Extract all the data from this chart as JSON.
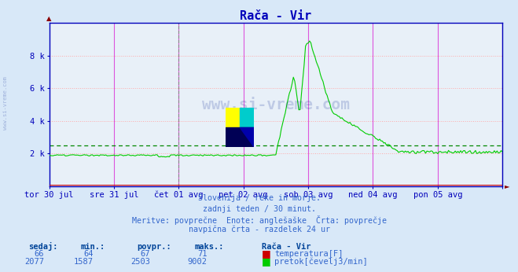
{
  "title": "Rača - Vir",
  "bg_color": "#d8e8f8",
  "plot_bg_color": "#e8f0f8",
  "fig_size": [
    6.59,
    3.46
  ],
  "dpi": 100,
  "ylim": [
    0,
    10000
  ],
  "ytick_vals": [
    2000,
    4000,
    6000,
    8000
  ],
  "ytick_labels": [
    "2 k",
    "4 k",
    "6 k",
    "8 k"
  ],
  "x_end": 336,
  "num_points": 337,
  "xlabel_ticks": [
    0,
    48,
    96,
    144,
    192,
    240,
    288,
    336
  ],
  "xlabel_labels": [
    "tor 30 jul",
    "sre 31 jul",
    "čet 01 avg",
    "pet 02 avg",
    "sob 03 avg",
    "ned 04 avg",
    "pon 05 avg",
    ""
  ],
  "flow_avg": 2503,
  "flow_color": "#00cc00",
  "temp_color": "#cc0000",
  "avg_line_color": "#008800",
  "grid_h_color": "#ffaaaa",
  "grid_v_solid_color": "#dd55dd",
  "grid_v_dash_color": "#888888",
  "axis_color": "#0000bb",
  "text_color": "#3366cc",
  "label_bold_color": "#004499",
  "watermark": "www.si-vreme.com",
  "watermark_color": "#1a3399",
  "subtitle_lines": [
    "Slovenija / reke in morje.",
    "zadnji teden / 30 minut.",
    "Meritve: povprečne  Enote: anglešaške  Črta: povprečje",
    "navpična črta - razdelek 24 ur"
  ],
  "legend_title": "Rača - Vir",
  "legend_items": [
    "temperatura[F]",
    "pretok[čevelj3/min]"
  ],
  "legend_colors": [
    "#cc0000",
    "#00cc00"
  ],
  "stats_headers": [
    "sedaj:",
    "min.:",
    "povpr.:",
    "maks.:"
  ],
  "stats_temp": [
    66,
    64,
    67,
    71
  ],
  "stats_flow": [
    2077,
    1587,
    2503,
    9002
  ],
  "logo_colors": [
    "#ffff00",
    "#00cccc",
    "#000055",
    "#0000aa"
  ],
  "spike_start": 168,
  "spike_peak": 193,
  "spike_end": 210,
  "spike_value": 9002,
  "pre_spike_value": 1950,
  "post_spike_decay_end": 260,
  "post_spike_final": 2100
}
